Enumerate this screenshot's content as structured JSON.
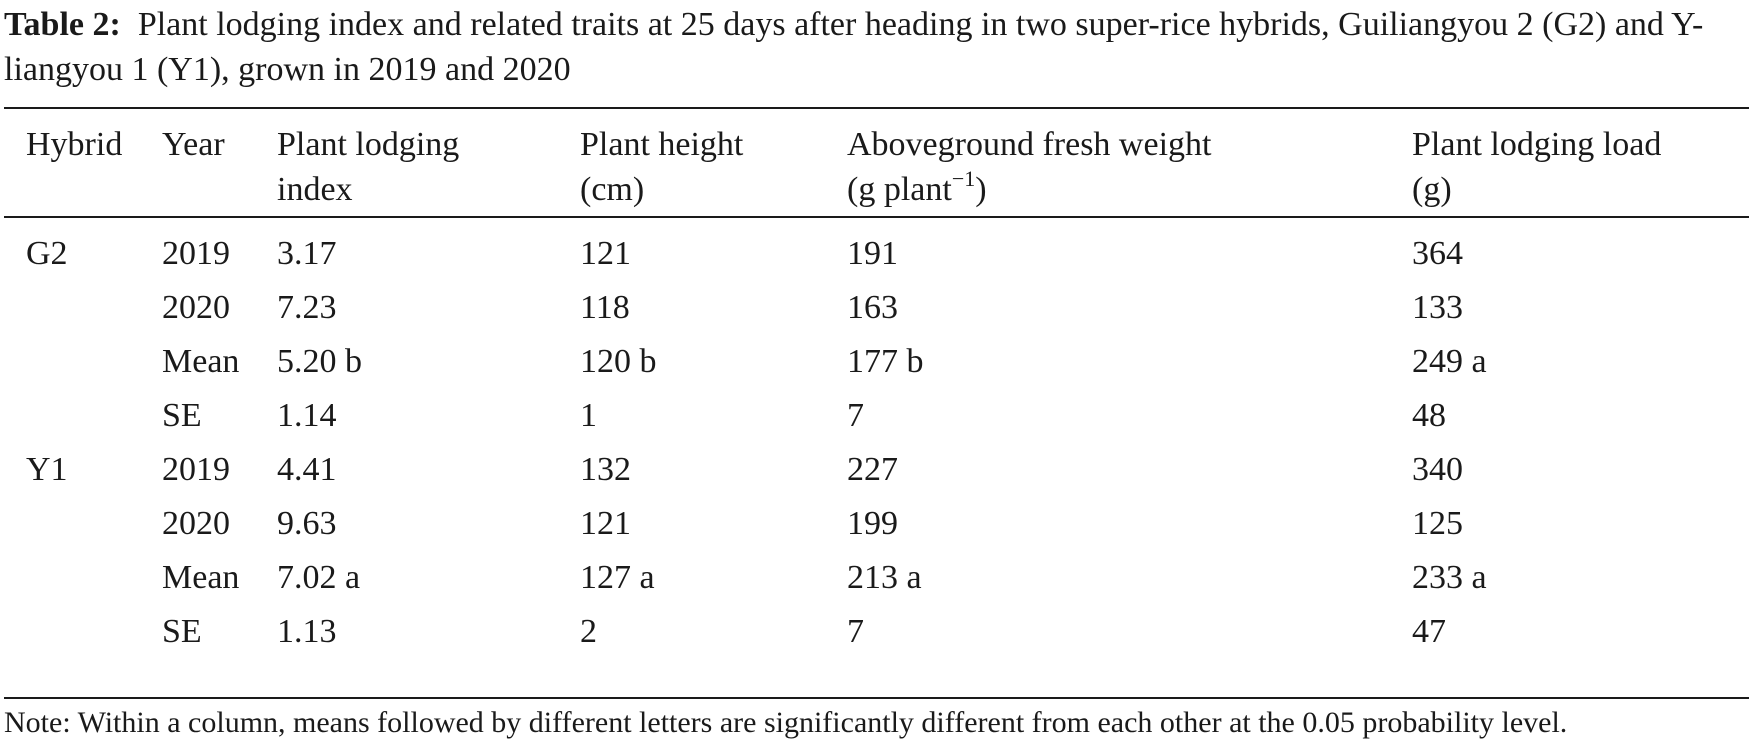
{
  "caption": {
    "label": "Table 2:",
    "text": "Plant lodging index and related traits at 25 days after heading in two super-rice hybrids, Guiliangyou 2 (G2) and Y-liangyou 1 (Y1), grown in 2019 and 2020"
  },
  "headers": {
    "hybrid": "Hybrid",
    "year": "Year",
    "pli_1": "Plant lodging",
    "pli_2": "index",
    "ph_1": "Plant height",
    "ph_2": "(cm)",
    "afw_1": "Aboveground fresh weight",
    "afw_2": "(g plant",
    "afw_2_sup": "−1",
    "afw_2_end": ")",
    "pll_1": "Plant lodging load",
    "pll_2": "(g)"
  },
  "rows": [
    {
      "hybrid": "G2",
      "year": "2019",
      "pli": "3.17",
      "ph": "121",
      "afw": "191",
      "pll": "364"
    },
    {
      "hybrid": "",
      "year": "2020",
      "pli": "7.23",
      "ph": "118",
      "afw": "163",
      "pll": "133"
    },
    {
      "hybrid": "",
      "year": "Mean",
      "pli": "5.20 b",
      "ph": "120 b",
      "afw": "177 b",
      "pll": "249 a"
    },
    {
      "hybrid": "",
      "year": "SE",
      "pli": "1.14",
      "ph": "1",
      "afw": "7",
      "pll": "48"
    },
    {
      "hybrid": "Y1",
      "year": "2019",
      "pli": "4.41",
      "ph": "132",
      "afw": "227",
      "pll": "340"
    },
    {
      "hybrid": "",
      "year": "2020",
      "pli": "9.63",
      "ph": "121",
      "afw": "199",
      "pll": "125"
    },
    {
      "hybrid": "",
      "year": "Mean",
      "pli": "7.02 a",
      "ph": "127 a",
      "afw": "213 a",
      "pll": "233 a"
    },
    {
      "hybrid": "",
      "year": "SE",
      "pli": "1.13",
      "ph": "2",
      "afw": "7",
      "pll": "47"
    }
  ],
  "note": "Note: Within a column, means followed by different letters are significantly different from each other at the 0.05 probability level."
}
